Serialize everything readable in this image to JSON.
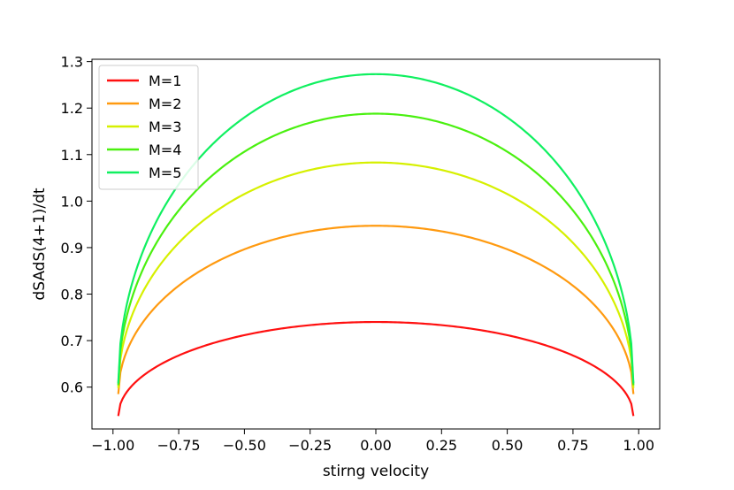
{
  "chart_data": {
    "type": "line",
    "title": "",
    "xlabel": "stirng velocity",
    "ylabel": "dSAdS(4+1)/dt",
    "xlim": [
      -1.08,
      1.08
    ],
    "ylim": [
      0.51,
      1.305
    ],
    "x_range": [
      -0.98,
      0.98
    ],
    "x_ticks": [
      -1.0,
      -0.75,
      -0.5,
      -0.25,
      0.0,
      0.25,
      0.5,
      0.75,
      1.0
    ],
    "x_tick_labels": [
      "−1.00",
      "−0.75",
      "−0.50",
      "−0.25",
      "0.00",
      "0.25",
      "0.50",
      "0.75",
      "1.00"
    ],
    "y_ticks": [
      0.6,
      0.7,
      0.8,
      0.9,
      1.0,
      1.1,
      1.2,
      1.3
    ],
    "y_tick_labels": [
      "0.6",
      "0.7",
      "0.8",
      "0.9",
      "1.0",
      "1.1",
      "1.2",
      "1.3"
    ],
    "grid": false,
    "legend_position": "upper-left",
    "series": [
      {
        "name": "M=1",
        "color": "#ff1010",
        "peak": 0.74,
        "edge": 0.538
      },
      {
        "name": "M=2",
        "color": "#ff9a10",
        "peak": 0.947,
        "edge": 0.585
      },
      {
        "name": "M=3",
        "color": "#d6f000",
        "peak": 1.083,
        "edge": 0.598
      },
      {
        "name": "M=4",
        "color": "#4af010",
        "peak": 1.188,
        "edge": 0.604
      },
      {
        "name": "M=5",
        "color": "#10f060",
        "peak": 1.273,
        "edge": 0.608
      }
    ]
  }
}
